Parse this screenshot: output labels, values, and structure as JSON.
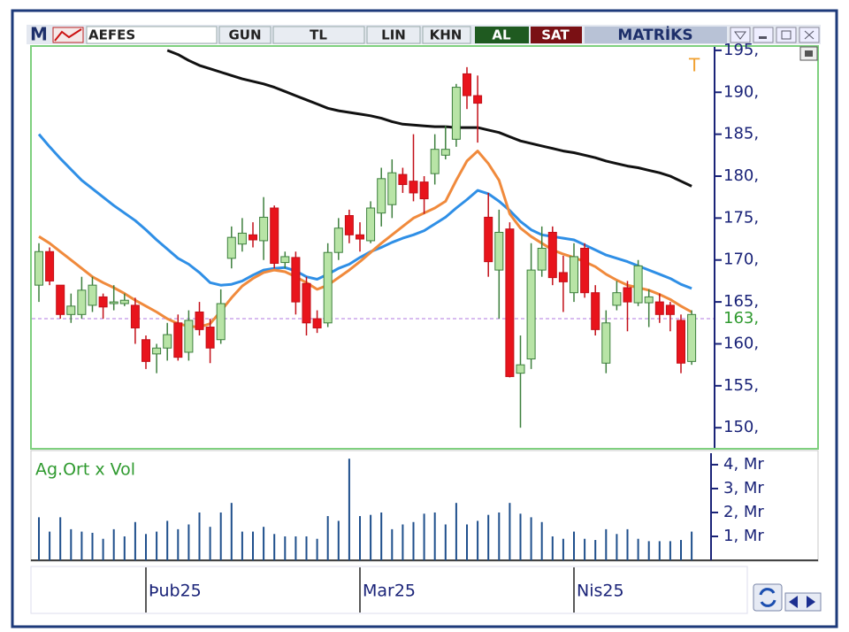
{
  "toolbar": {
    "logo": "M",
    "symbol": "AEFES",
    "buttons": [
      "GUN",
      "TL",
      "LIN",
      "KHN"
    ],
    "buy": "AL",
    "sell": "SAT",
    "brand": "MATRİKS"
  },
  "chart_data": [
    {
      "type": "candlestick",
      "annotation": "T",
      "categories": [
        null,
        null,
        null,
        null,
        null,
        null,
        null,
        null,
        null,
        null,
        "Þub25",
        null,
        null,
        null,
        null,
        null,
        null,
        null,
        null,
        null,
        null,
        null,
        null,
        null,
        null,
        null,
        null,
        null,
        null,
        null,
        "Mar25",
        null,
        null,
        null,
        null,
        null,
        null,
        null,
        null,
        null,
        null,
        null,
        null,
        null,
        null,
        null,
        null,
        null,
        null,
        null,
        "Nis25",
        null,
        null,
        null,
        null,
        null,
        null,
        null,
        null,
        null,
        null,
        null
      ],
      "open": [
        167,
        171,
        167,
        163.5,
        163.5,
        164.6,
        165.6,
        164.8,
        164.8,
        164.6,
        160.5,
        158.8,
        159.5,
        162.5,
        159,
        163.8,
        162,
        160.5,
        170.2,
        171.9,
        173,
        172.3,
        176.2,
        169.7,
        170.3,
        167.2,
        163,
        162.5,
        170.9,
        175.3,
        173,
        172.3,
        175.6,
        176.6,
        180.2,
        179.4,
        179.3,
        180.3,
        182.5,
        184.4,
        192.2,
        189.6,
        175.1,
        168.8,
        173.7,
        156.5,
        158.2,
        168.8,
        173.3,
        168.5,
        166.1,
        171.4,
        166.1,
        157.7,
        164.6,
        166.7,
        164.9,
        164.9,
        165,
        164.6,
        162.8,
        157.9
      ],
      "high": [
        172,
        171.5,
        167,
        166,
        168,
        168,
        166,
        167,
        166,
        165.5,
        161,
        160,
        162.5,
        163.5,
        164,
        165,
        163,
        166.5,
        174,
        175,
        174.5,
        177.5,
        176.5,
        171,
        171,
        168,
        164,
        172,
        175,
        176,
        174.5,
        177,
        181,
        182,
        181,
        185,
        180,
        185,
        186,
        191,
        193,
        192,
        178,
        176,
        174.5,
        161,
        172,
        174,
        174,
        170.5,
        172,
        172,
        167,
        164,
        167.5,
        167.5,
        170,
        166.5,
        166,
        165,
        163.5,
        164
      ],
      "low": [
        165,
        167,
        163,
        162.5,
        163,
        163.8,
        163,
        164,
        164.5,
        160,
        157,
        156.5,
        158,
        158,
        158,
        161,
        157.7,
        160,
        169,
        171,
        171.5,
        170,
        169,
        169,
        163.5,
        161,
        161.3,
        162,
        170,
        172,
        171,
        172,
        174,
        175,
        178,
        177,
        175.5,
        179,
        182,
        183.5,
        188,
        184,
        168,
        163,
        156,
        150,
        157,
        168,
        167,
        163.8,
        165,
        165.5,
        161,
        156.5,
        164,
        161.5,
        164.5,
        162,
        162.5,
        161.5,
        156.5,
        157.5
      ],
      "close": [
        171,
        167.5,
        163.5,
        164.5,
        166.4,
        167,
        164.4,
        165,
        165.2,
        161.9,
        157.9,
        159.5,
        161.1,
        158.4,
        162.8,
        161.7,
        159.5,
        164.8,
        172.7,
        173.2,
        172.4,
        175.1,
        169.6,
        170.4,
        165,
        162.5,
        161.9,
        170.9,
        173.8,
        173,
        172.5,
        176.2,
        179.7,
        180.4,
        179,
        178,
        177.3,
        183.2,
        183.2,
        190.6,
        189.6,
        188.7,
        169.8,
        173.3,
        156.1,
        157.5,
        168.8,
        171.4,
        167.9,
        167.4,
        170.4,
        166.1,
        161.7,
        162.5,
        166.1,
        165,
        169.3,
        165.6,
        163.5,
        163.5,
        157.7,
        163.5
      ],
      "up_color": "#b8e4a6",
      "up_edge": "#3d7f3d",
      "down_color": "#e8141c",
      "down_edge": "#c20f18",
      "overlays": [
        {
          "color": "#111111",
          "values": [
            null,
            null,
            null,
            null,
            null,
            null,
            null,
            null,
            null,
            null,
            null,
            null,
            195.0,
            194.5,
            193.8,
            193.2,
            192.8,
            192.4,
            192.0,
            191.6,
            191.3,
            191.0,
            190.6,
            190.1,
            189.6,
            189.1,
            188.6,
            188.1,
            187.8,
            187.6,
            187.4,
            187.2,
            186.9,
            186.5,
            186.2,
            186.1,
            186.0,
            185.9,
            185.9,
            185.8,
            185.8,
            185.8,
            185.5,
            185.2,
            184.7,
            184.2,
            183.9,
            183.6,
            183.3,
            183.0,
            182.8,
            182.5,
            182.2,
            181.8,
            181.5,
            181.2,
            181.0,
            180.7,
            180.4,
            180.0,
            179.4,
            178.8
          ]
        },
        {
          "color": "#2f8fe6",
          "values": [
            185,
            183.5,
            182.1,
            180.8,
            179.5,
            178.5,
            177.5,
            176.5,
            175.6,
            174.7,
            173.6,
            172.4,
            171.3,
            170.2,
            169.5,
            168.5,
            167.3,
            167.0,
            167.1,
            167.5,
            168.2,
            168.8,
            169.0,
            169.1,
            168.7,
            168.0,
            167.7,
            168.3,
            169.0,
            169.5,
            170.3,
            171.0,
            171.5,
            172.1,
            172.6,
            173.0,
            173.5,
            174.3,
            175.1,
            176.2,
            177.2,
            178.3,
            177.9,
            177.0,
            175.9,
            174.6,
            173.6,
            173.0,
            172.8,
            172.6,
            172.4,
            171.8,
            171.2,
            170.6,
            170.2,
            169.8,
            169.3,
            168.8,
            168.3,
            167.8,
            167.1,
            166.6
          ]
        },
        {
          "color": "#f08a3c",
          "values": [
            172.8,
            172.0,
            171.0,
            170.0,
            169.0,
            168.0,
            167.3,
            166.7,
            166.0,
            165.2,
            164.5,
            163.8,
            163.0,
            162.4,
            162.1,
            162.0,
            162.4,
            163.9,
            165.5,
            166.9,
            167.8,
            168.5,
            168.8,
            168.6,
            168.0,
            167.3,
            166.5,
            167.0,
            167.9,
            168.8,
            169.8,
            170.9,
            172.0,
            173.0,
            174.0,
            175.0,
            175.6,
            176.2,
            177.0,
            179.5,
            181.8,
            183.0,
            181.5,
            179.5,
            175.5,
            173.8,
            172.8,
            172.0,
            171.2,
            170.7,
            170.3,
            169.8,
            169.2,
            168.3,
            167.6,
            167.0,
            166.7,
            166.4,
            165.9,
            165.3,
            164.5,
            163.8
          ]
        }
      ],
      "last_price": {
        "value": 163,
        "label": "163,"
      },
      "ylim": [
        147.7,
        195.2
      ],
      "yticks": [
        {
          "value": 150,
          "label": "150,"
        },
        {
          "value": 155,
          "label": "155,"
        },
        {
          "value": 160,
          "label": "160,"
        },
        {
          "value": 165,
          "label": "165,"
        },
        {
          "value": 170,
          "label": "170,"
        },
        {
          "value": 175,
          "label": "175,"
        },
        {
          "value": 180,
          "label": "180,"
        },
        {
          "value": 185,
          "label": "185,"
        },
        {
          "value": 190,
          "label": "190,"
        },
        {
          "value": 195,
          "label": "195,"
        }
      ]
    },
    {
      "type": "bar",
      "title": "Ag.Ort x Vol",
      "color": "#1f4f8c",
      "values": [
        1.8,
        1.2,
        1.8,
        1.3,
        1.2,
        1.15,
        0.9,
        1.3,
        1.0,
        1.6,
        1.1,
        1.2,
        1.65,
        1.3,
        1.5,
        2.0,
        1.4,
        2.0,
        2.4,
        1.2,
        1.2,
        1.4,
        1.1,
        1.0,
        1.0,
        1.0,
        0.9,
        1.85,
        1.65,
        4.25,
        1.85,
        1.9,
        2.0,
        1.3,
        1.5,
        1.6,
        1.95,
        2.0,
        1.5,
        2.4,
        1.5,
        1.65,
        1.9,
        2.0,
        2.4,
        1.95,
        1.8,
        1.6,
        1.0,
        0.9,
        1.2,
        0.9,
        0.85,
        1.3,
        1.1,
        1.3,
        0.9,
        0.8,
        0.8,
        0.8,
        0.85,
        1.2
      ],
      "ylim": [
        0,
        4.48
      ],
      "yticks": [
        {
          "value": 1,
          "label": "1, Mr"
        },
        {
          "value": 2,
          "label": "2, Mr"
        },
        {
          "value": 3,
          "label": "3, Mr"
        },
        {
          "value": 4,
          "label": "4, Mr"
        }
      ]
    }
  ]
}
